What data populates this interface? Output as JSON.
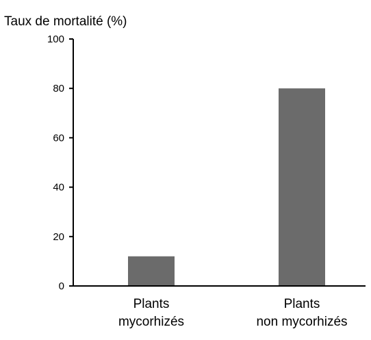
{
  "chart_data": {
    "type": "bar",
    "title": "",
    "ylabel": "Taux de mortalité (%)",
    "xlabel": "",
    "categories": [
      [
        "Plants",
        "mycorhizés"
      ],
      [
        "Plants",
        "non mycorhizés"
      ]
    ],
    "values": [
      12,
      80
    ],
    "ylim": [
      0,
      100
    ],
    "yticks": [
      0,
      20,
      40,
      60,
      80,
      100
    ],
    "grid": false,
    "legend": "none",
    "bar_color": "#6b6b6b",
    "axis_color": "#000000"
  }
}
